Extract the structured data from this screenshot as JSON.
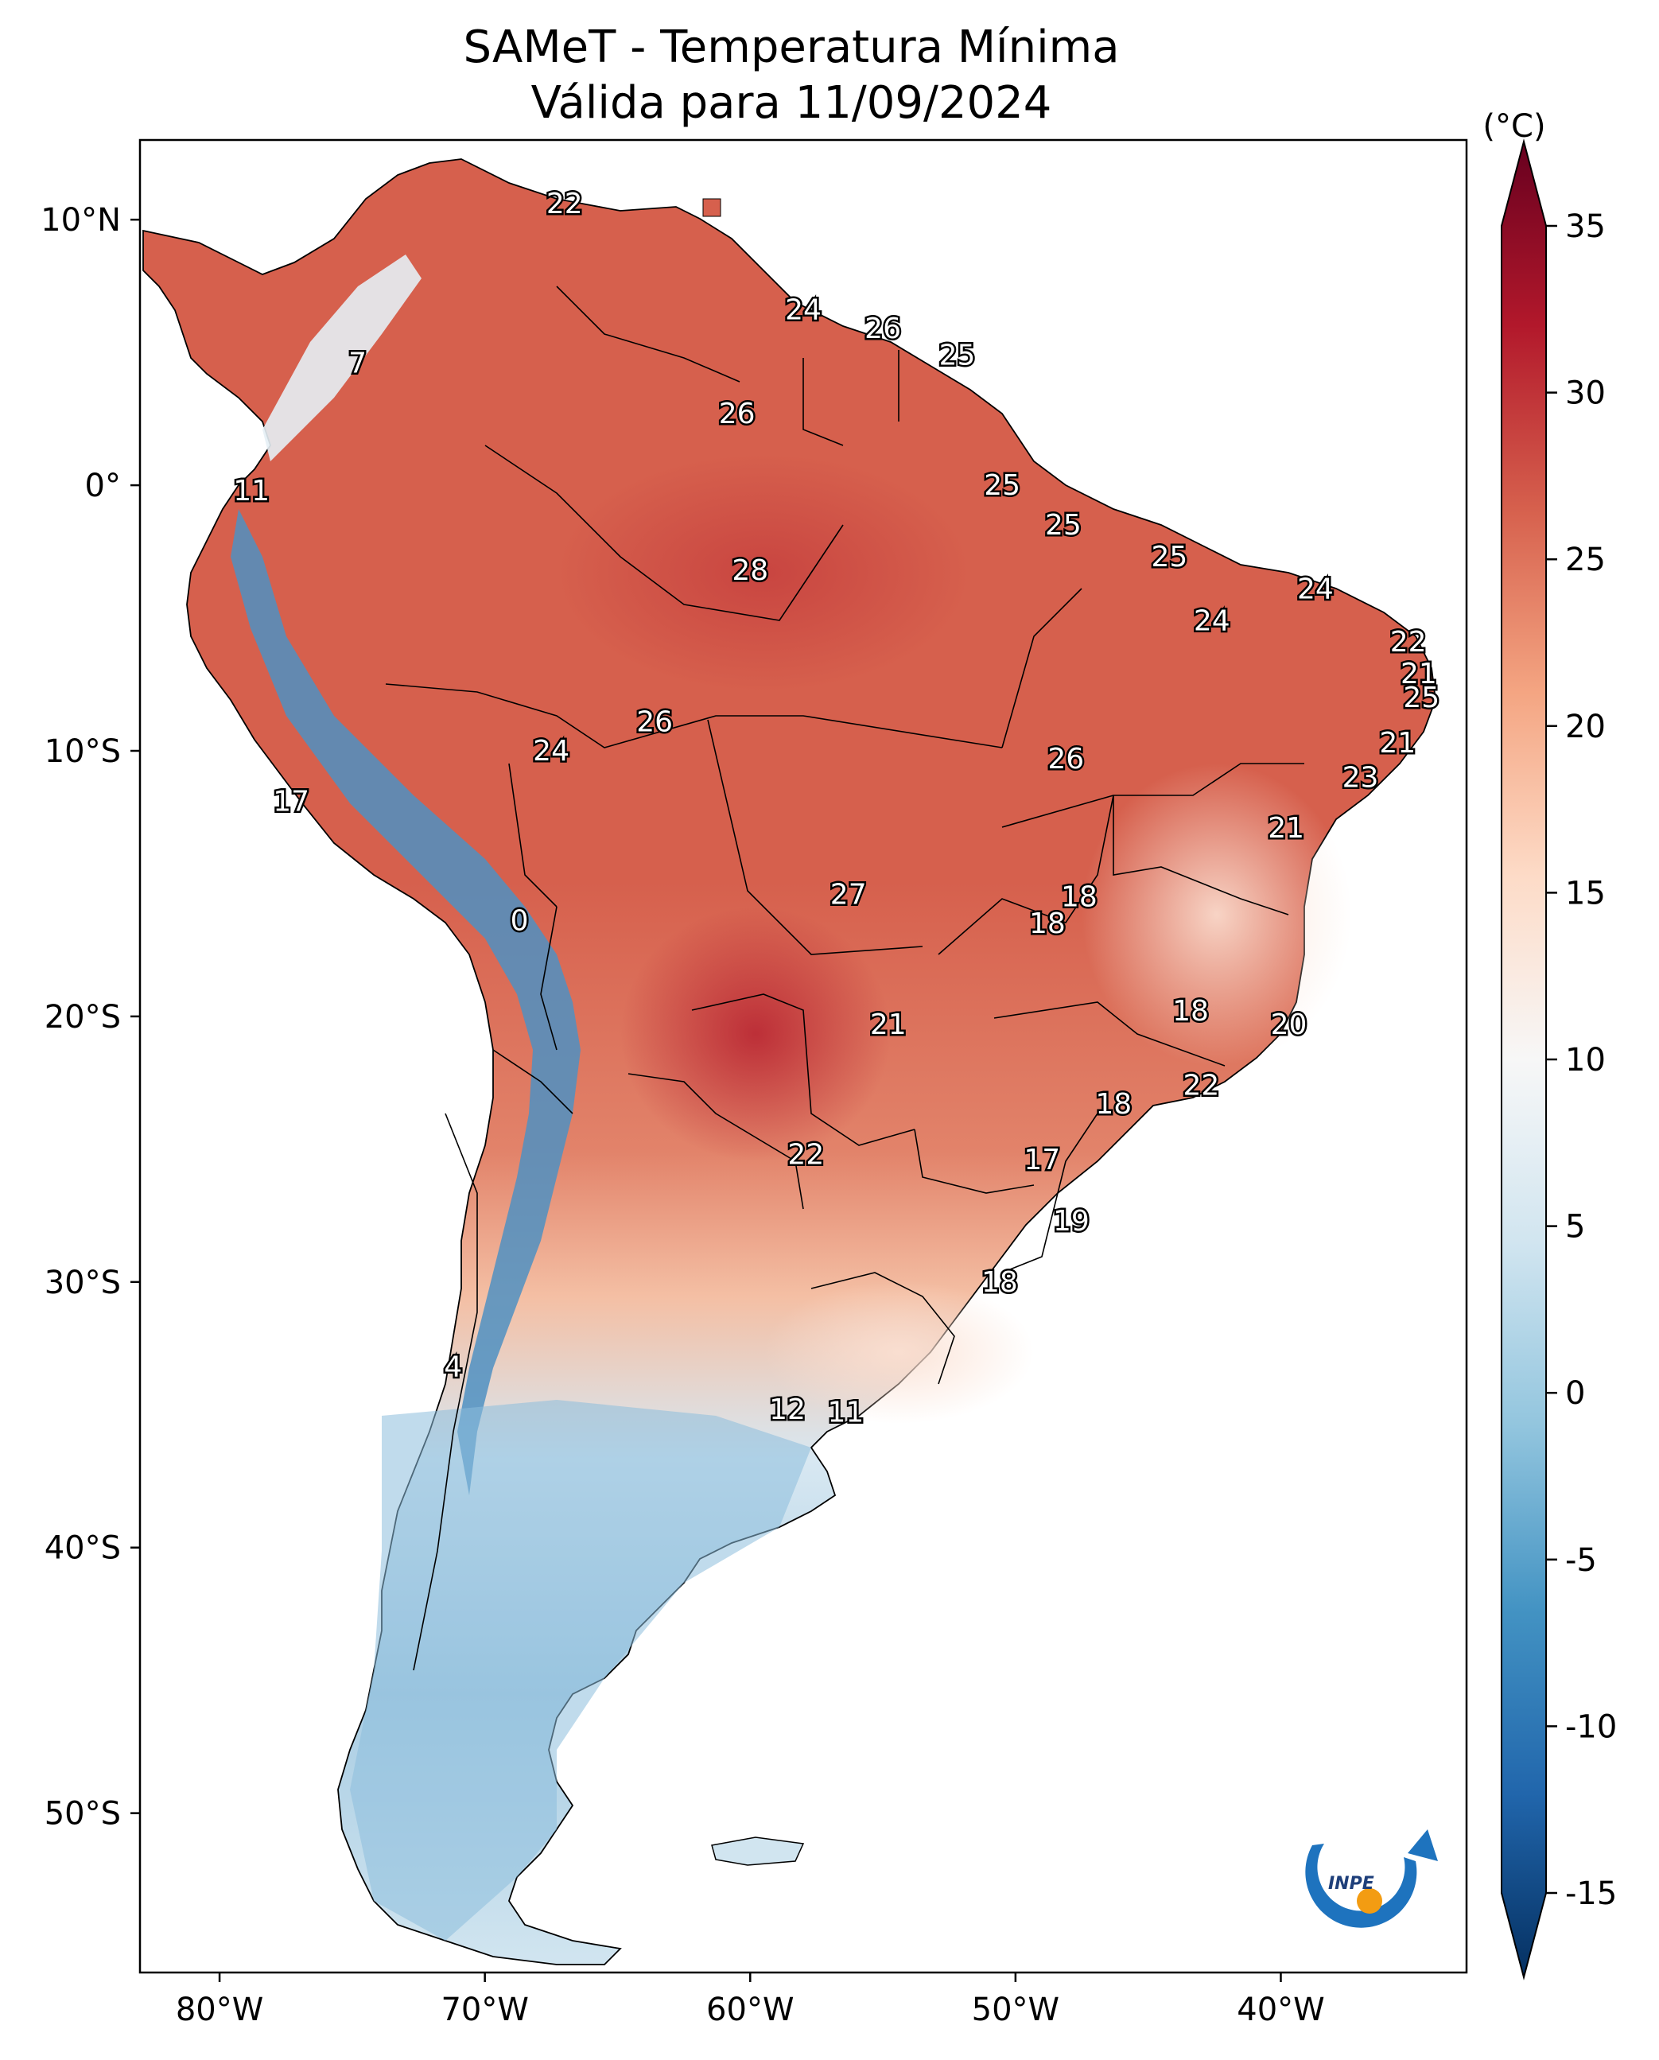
{
  "title": {
    "line1": "SAMeT - Temperatura Mínima",
    "line2": "Válida para 11/09/2024"
  },
  "map": {
    "lon_range": [
      -83,
      -33
    ],
    "lat_range": [
      -56,
      13
    ],
    "lat_ticks": [
      {
        "value": 10,
        "label": "10°N"
      },
      {
        "value": 0,
        "label": "0°"
      },
      {
        "value": -10,
        "label": "10°S"
      },
      {
        "value": -20,
        "label": "20°S"
      },
      {
        "value": -30,
        "label": "30°S"
      },
      {
        "value": -40,
        "label": "40°S"
      },
      {
        "value": -50,
        "label": "50°S"
      }
    ],
    "lon_ticks": [
      {
        "value": -80,
        "label": "80°W"
      },
      {
        "value": -70,
        "label": "70°W"
      },
      {
        "value": -60,
        "label": "60°W"
      },
      {
        "value": -50,
        "label": "50°W"
      },
      {
        "value": -40,
        "label": "40°W"
      }
    ],
    "value_labels": [
      {
        "text": "22",
        "lon": -67.0,
        "lat": 10.6
      },
      {
        "text": "24",
        "lon": -58.0,
        "lat": 6.6
      },
      {
        "text": "26",
        "lon": -55.0,
        "lat": 5.9
      },
      {
        "text": "25",
        "lon": -52.2,
        "lat": 4.9
      },
      {
        "text": "7",
        "lon": -74.8,
        "lat": 4.6
      },
      {
        "text": "26",
        "lon": -60.5,
        "lat": 2.7
      },
      {
        "text": "11",
        "lon": -78.8,
        "lat": -0.2
      },
      {
        "text": "25",
        "lon": -50.5,
        "lat": 0.0
      },
      {
        "text": "25",
        "lon": -48.2,
        "lat": -1.5
      },
      {
        "text": "25",
        "lon": -44.2,
        "lat": -2.7
      },
      {
        "text": "28",
        "lon": -60.0,
        "lat": -3.2
      },
      {
        "text": "24",
        "lon": -38.7,
        "lat": -3.9
      },
      {
        "text": "24",
        "lon": -42.6,
        "lat": -5.1
      },
      {
        "text": "22",
        "lon": -35.2,
        "lat": -5.9
      },
      {
        "text": "21",
        "lon": -34.8,
        "lat": -7.1
      },
      {
        "text": "25",
        "lon": -34.7,
        "lat": -8.0
      },
      {
        "text": "26",
        "lon": -63.6,
        "lat": -8.9
      },
      {
        "text": "21",
        "lon": -35.6,
        "lat": -9.7
      },
      {
        "text": "24",
        "lon": -67.5,
        "lat": -10.0
      },
      {
        "text": "26",
        "lon": -48.1,
        "lat": -10.3
      },
      {
        "text": "23",
        "lon": -37.0,
        "lat": -11.0
      },
      {
        "text": "17",
        "lon": -77.3,
        "lat": -11.9
      },
      {
        "text": "21",
        "lon": -39.8,
        "lat": -12.9
      },
      {
        "text": "27",
        "lon": -56.3,
        "lat": -15.4
      },
      {
        "text": "18",
        "lon": -47.6,
        "lat": -15.5
      },
      {
        "text": "18",
        "lon": -48.8,
        "lat": -16.5
      },
      {
        "text": "0",
        "lon": -68.7,
        "lat": -16.4
      },
      {
        "text": "18",
        "lon": -43.4,
        "lat": -19.8
      },
      {
        "text": "21",
        "lon": -54.8,
        "lat": -20.3
      },
      {
        "text": "20",
        "lon": -39.7,
        "lat": -20.3
      },
      {
        "text": "22",
        "lon": -43.0,
        "lat": -22.6
      },
      {
        "text": "18",
        "lon": -46.3,
        "lat": -23.3
      },
      {
        "text": "22",
        "lon": -57.9,
        "lat": -25.2
      },
      {
        "text": "17",
        "lon": -49.0,
        "lat": -25.4
      },
      {
        "text": "19",
        "lon": -47.9,
        "lat": -27.7
      },
      {
        "text": "18",
        "lon": -50.6,
        "lat": -30.0
      },
      {
        "text": "4",
        "lon": -71.2,
        "lat": -33.2
      },
      {
        "text": "12",
        "lon": -58.6,
        "lat": -34.8
      },
      {
        "text": "11",
        "lon": -56.4,
        "lat": -34.9
      }
    ]
  },
  "colorbar": {
    "unit": "(°C)",
    "min": -15,
    "max": 35,
    "ticks": [
      35,
      30,
      25,
      20,
      15,
      10,
      5,
      0,
      -5,
      -10,
      -15
    ],
    "colors": [
      "#053061",
      "#2166ac",
      "#4393c3",
      "#92c5de",
      "#d1e5f0",
      "#f7f7f7",
      "#fddbc7",
      "#f4a582",
      "#d6604d",
      "#b2182b",
      "#67001f"
    ]
  },
  "logo_text": "INPE"
}
